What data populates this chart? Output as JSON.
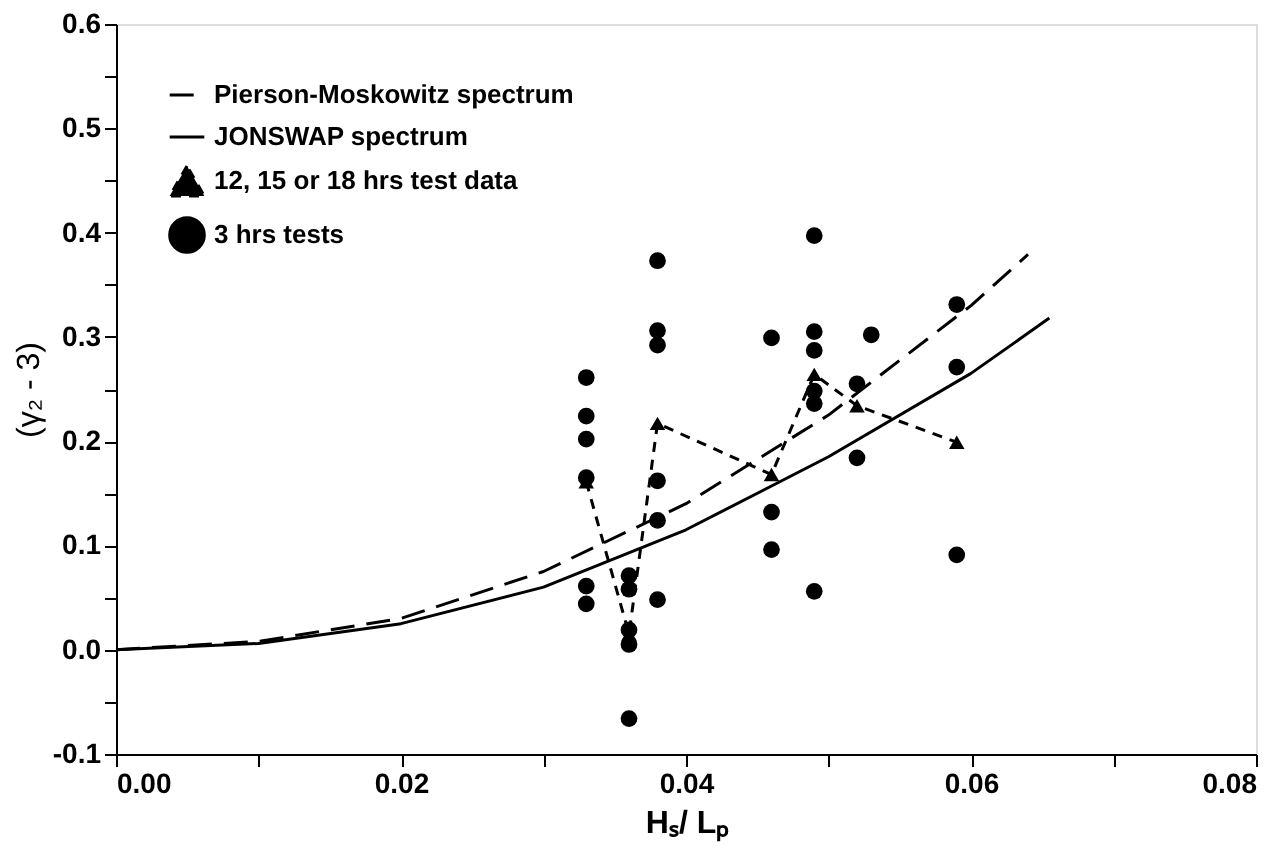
{
  "chart_data": {
    "type": "scatter",
    "xlabel": "Hₛ/ Lₚ",
    "ylabel": "(γ₂ - 3)",
    "xlim": [
      0,
      0.08
    ],
    "ylim": [
      -0.1,
      0.6
    ],
    "xticks": [
      {
        "value": 0,
        "label": "0.00"
      },
      {
        "value": 0.01,
        "label": null
      },
      {
        "value": 0.02,
        "label": "0.02"
      },
      {
        "value": 0.03,
        "label": null
      },
      {
        "value": 0.04,
        "label": "0.04"
      },
      {
        "value": 0.05,
        "label": null
      },
      {
        "value": 0.06,
        "label": "0.06"
      },
      {
        "value": 0.07,
        "label": null
      },
      {
        "value": 0.08,
        "label": "0.08"
      }
    ],
    "yticks": [
      {
        "value": -0.1,
        "label": "-0.1"
      },
      {
        "value": -0.05,
        "label": null
      },
      {
        "value": 0,
        "label": "0.0"
      },
      {
        "value": 0.05,
        "label": null
      },
      {
        "value": 0.1,
        "label": "0.1"
      },
      {
        "value": 0.15,
        "label": null
      },
      {
        "value": 0.2,
        "label": "0.2"
      },
      {
        "value": 0.25,
        "label": null
      },
      {
        "value": 0.3,
        "label": "0.3"
      },
      {
        "value": 0.35,
        "label": null
      },
      {
        "value": 0.4,
        "label": "0.4"
      },
      {
        "value": 0.45,
        "label": null
      },
      {
        "value": 0.5,
        "label": "0.5"
      },
      {
        "value": 0.55,
        "label": null
      },
      {
        "value": 0.6,
        "label": "0.6"
      }
    ],
    "grid": false,
    "legend": "top left",
    "series": [
      {
        "name": "Pierson-Moskowitz spectrum",
        "type": "line",
        "color": "#000000",
        "line_style": "dashed",
        "marker": "none",
        "x": [
          0,
          0.01,
          0.02,
          0.03,
          0.04,
          0.05,
          0.06,
          0.064
        ],
        "values": [
          0,
          0.008,
          0.03,
          0.075,
          0.14,
          0.225,
          0.33,
          0.379
        ]
      },
      {
        "name": "JONSWAP spectrum",
        "type": "line",
        "color": "#000000",
        "line_style": "solid",
        "marker": "none",
        "x": [
          0,
          0.01,
          0.02,
          0.03,
          0.04,
          0.05,
          0.06,
          0.0655
        ],
        "values": [
          0,
          0.006,
          0.025,
          0.06,
          0.115,
          0.185,
          0.265,
          0.318
        ]
      },
      {
        "name": "12, 15 or 18 hrs test data",
        "type": "line",
        "color": "#000000",
        "line_style": "dotted",
        "marker": "triangle",
        "x": [
          0.033,
          0.036,
          0.038,
          0.046,
          0.049,
          0.052,
          0.059
        ],
        "values": [
          0.161,
          0.015,
          0.217,
          0.168,
          0.264,
          0.234,
          0.199
        ]
      },
      {
        "name": "3 hrs tests",
        "color": "#000000",
        "marker": "circle",
        "x": [
          0.033,
          0.033,
          0.033,
          0.033,
          0.033,
          0.033,
          0.036,
          0.036,
          0.036,
          0.036,
          0.036,
          0.038,
          0.038,
          0.038,
          0.038,
          0.038,
          0.038,
          0.046,
          0.046,
          0.046,
          0.049,
          0.049,
          0.049,
          0.049,
          0.049,
          0.049,
          0.052,
          0.052,
          0.053,
          0.059,
          0.059,
          0.059
        ],
        "values": [
          0.261,
          0.224,
          0.202,
          0.165,
          0.061,
          0.044,
          0.071,
          0.058,
          0.019,
          0.005,
          -0.066,
          0.373,
          0.306,
          0.292,
          0.162,
          0.124,
          0.048,
          0.299,
          0.132,
          0.096,
          0.397,
          0.305,
          0.287,
          0.248,
          0.236,
          0.056,
          0.255,
          0.184,
          0.302,
          0.331,
          0.271,
          0.091
        ]
      }
    ]
  }
}
